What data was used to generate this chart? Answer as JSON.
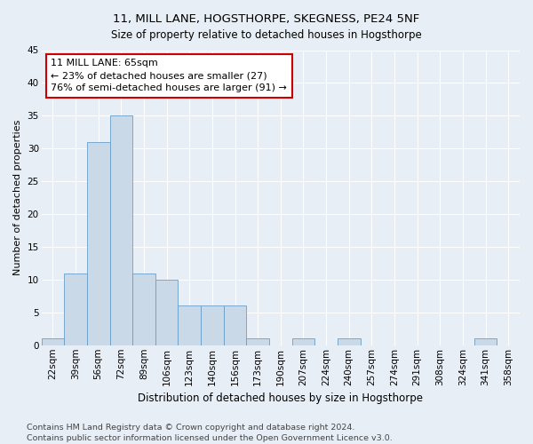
{
  "title": "11, MILL LANE, HOGSTHORPE, SKEGNESS, PE24 5NF",
  "subtitle": "Size of property relative to detached houses in Hogsthorpe",
  "xlabel": "Distribution of detached houses by size in Hogsthorpe",
  "ylabel": "Number of detached properties",
  "bar_labels": [
    "22sqm",
    "39sqm",
    "56sqm",
    "72sqm",
    "89sqm",
    "106sqm",
    "123sqm",
    "140sqm",
    "156sqm",
    "173sqm",
    "190sqm",
    "207sqm",
    "224sqm",
    "240sqm",
    "257sqm",
    "274sqm",
    "291sqm",
    "308sqm",
    "324sqm",
    "341sqm",
    "358sqm"
  ],
  "bar_values": [
    1,
    11,
    31,
    35,
    11,
    10,
    6,
    6,
    6,
    1,
    0,
    1,
    0,
    1,
    0,
    0,
    0,
    0,
    0,
    1,
    0
  ],
  "bar_color": "#c9d9e8",
  "bar_edge_color": "#6b9ec8",
  "annotation_text": "11 MILL LANE: 65sqm\n← 23% of detached houses are smaller (27)\n76% of semi-detached houses are larger (91) →",
  "annotation_box_color": "#ffffff",
  "annotation_box_edge_color": "#cc0000",
  "ylim": [
    0,
    45
  ],
  "yticks": [
    0,
    5,
    10,
    15,
    20,
    25,
    30,
    35,
    40,
    45
  ],
  "bg_color": "#e8eef5",
  "plot_bg_color": "#e8eef5",
  "footer_line1": "Contains HM Land Registry data © Crown copyright and database right 2024.",
  "footer_line2": "Contains public sector information licensed under the Open Government Licence v3.0.",
  "title_fontsize": 9.5,
  "subtitle_fontsize": 8.5,
  "xlabel_fontsize": 8.5,
  "ylabel_fontsize": 8,
  "tick_fontsize": 7.5,
  "annotation_fontsize": 8,
  "footer_fontsize": 6.8
}
